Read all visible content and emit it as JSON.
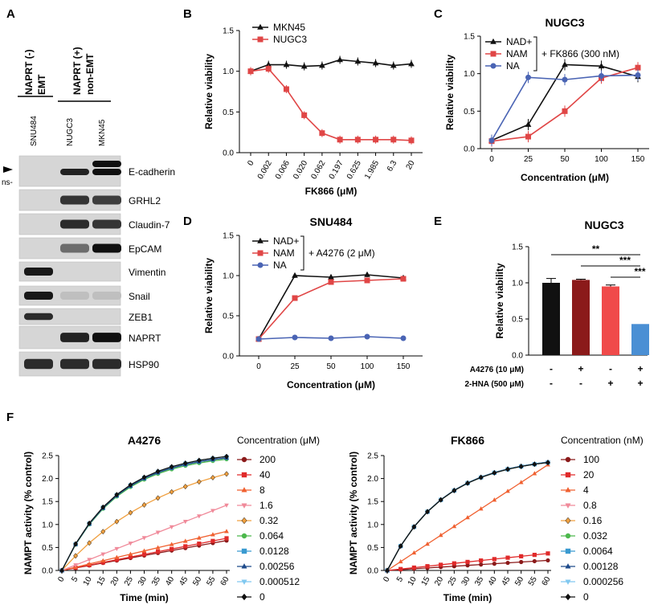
{
  "panel_letters": {
    "a": "A",
    "b": "B",
    "c": "C",
    "d": "D",
    "e": "E",
    "f": "F"
  },
  "blot": {
    "groups": [
      {
        "label": "NAPRT (-)",
        "sub": "EMT"
      },
      {
        "label": "NAPRT (+)",
        "sub": "non-EMT"
      }
    ],
    "lanes": [
      "SNU484",
      "NUGC3",
      "MKN45"
    ],
    "arrow_label": "ns-",
    "bands": [
      {
        "label": "E-cadherin",
        "intensity": [
          0.0,
          0.9,
          1.0
        ]
      },
      {
        "label": "GRHL2",
        "intensity": [
          0.0,
          0.8,
          0.75
        ]
      },
      {
        "label": "Claudin-7",
        "intensity": [
          0.0,
          0.85,
          0.8
        ]
      },
      {
        "label": "EpCAM",
        "intensity": [
          0.0,
          0.5,
          1.0
        ]
      },
      {
        "label": "Vimentin",
        "intensity": [
          0.95,
          0.0,
          0.0
        ]
      },
      {
        "label": "Snail",
        "intensity": [
          0.95,
          0.05,
          0.05
        ]
      },
      {
        "label": "ZEB1",
        "intensity": [
          0.85,
          0.0,
          0.0
        ]
      },
      {
        "label": "NAPRT",
        "intensity": [
          0.0,
          0.9,
          1.0
        ]
      },
      {
        "label": "HSP90",
        "intensity": [
          0.85,
          0.85,
          0.85
        ]
      }
    ]
  },
  "chart_data": [
    {
      "id": "B",
      "type": "line",
      "title": "",
      "xlabel": "FK866 (μM)",
      "ylabel": "Relative viability",
      "categories": [
        "0",
        "0.002",
        "0.006",
        "0.020",
        "0.062",
        "0.197",
        "0.625",
        "1.985",
        "6.3",
        "20"
      ],
      "ylim": [
        0,
        1.5
      ],
      "yticks": [
        "0.0",
        "0.5",
        "1.0",
        "1.5"
      ],
      "series": [
        {
          "name": "MKN45",
          "color": "#111111",
          "marker": "triangle",
          "values": [
            1.0,
            1.08,
            1.08,
            1.06,
            1.07,
            1.14,
            1.12,
            1.1,
            1.07,
            1.09
          ]
        },
        {
          "name": "NUGC3",
          "color": "#e04646",
          "marker": "square",
          "values": [
            1.0,
            1.03,
            0.78,
            0.46,
            0.24,
            0.16,
            0.16,
            0.16,
            0.16,
            0.15
          ]
        }
      ]
    },
    {
      "id": "C",
      "type": "line",
      "title": "NUGC3",
      "xlabel": "Concentration (μM)",
      "ylabel": "Relative viability",
      "categories": [
        "0",
        "25",
        "50",
        "100",
        "150"
      ],
      "ylim": [
        0,
        1.5
      ],
      "yticks": [
        "0.0",
        "0.5",
        "1.0",
        "1.5"
      ],
      "bracket_label": "+ FK866 (300 nM)",
      "series": [
        {
          "name": "NAD+",
          "color": "#111111",
          "marker": "triangle",
          "values": [
            0.11,
            0.32,
            1.12,
            1.1,
            0.96
          ]
        },
        {
          "name": "NAM",
          "color": "#e04646",
          "marker": "square",
          "values": [
            0.1,
            0.16,
            0.5,
            0.94,
            1.08
          ]
        },
        {
          "name": "NA",
          "color": "#4a64b4",
          "marker": "circle",
          "values": [
            0.11,
            0.95,
            0.92,
            0.97,
            0.98
          ]
        }
      ]
    },
    {
      "id": "D",
      "type": "line",
      "title": "SNU484",
      "xlabel": "Concentration (μM)",
      "ylabel": "Relative viability",
      "categories": [
        "0",
        "25",
        "50",
        "100",
        "150"
      ],
      "ylim": [
        0,
        1.5
      ],
      "yticks": [
        "0.0",
        "0.5",
        "1.0",
        "1.5"
      ],
      "bracket_label": "+ A4276 (2 μM)",
      "series": [
        {
          "name": "NAD+",
          "color": "#111111",
          "marker": "triangle",
          "values": [
            0.21,
            1.0,
            0.98,
            1.01,
            0.97
          ]
        },
        {
          "name": "NAM",
          "color": "#e04646",
          "marker": "square",
          "values": [
            0.21,
            0.72,
            0.92,
            0.94,
            0.96
          ]
        },
        {
          "name": "NA",
          "color": "#4a64b4",
          "marker": "circle",
          "values": [
            0.21,
            0.23,
            0.22,
            0.24,
            0.22
          ]
        }
      ]
    },
    {
      "id": "E",
      "type": "bar",
      "title": "NUGC3",
      "ylabel": "Relative viability",
      "ylim": [
        0,
        1.5
      ],
      "yticks": [
        "0.0",
        "0.5",
        "1.0",
        "1.5"
      ],
      "values": [
        1.0,
        1.04,
        0.95,
        0.43
      ],
      "errors": [
        0.06,
        0.01,
        0.02,
        0.0
      ],
      "colors": [
        "#111111",
        "#8b1a1a",
        "#f04a4a",
        "#4a8fd4"
      ],
      "rows": [
        {
          "label": "A4276 (10 μM)",
          "marks": [
            "-",
            "+",
            "-",
            "+"
          ]
        },
        {
          "label": "2-HNA (500 μM)",
          "marks": [
            "-",
            "-",
            "+",
            "+"
          ]
        }
      ],
      "significance": [
        "**",
        "***",
        "***"
      ]
    },
    {
      "id": "F-A4276",
      "type": "line",
      "title": "A4276",
      "xlabel": "Time (min)",
      "ylabel": "NAMPT activity (% control)",
      "x": [
        0,
        5,
        10,
        15,
        20,
        25,
        30,
        35,
        40,
        45,
        50,
        55,
        60
      ],
      "ylim": [
        0,
        2.5
      ],
      "yticks": [
        "0.0",
        "0.5",
        "1.0",
        "1.5",
        "2.0",
        "2.5"
      ],
      "xticks": [
        "0",
        "5",
        "10",
        "15",
        "20",
        "25",
        "30",
        "35",
        "40",
        "45",
        "50",
        "55",
        "60"
      ],
      "legend_title": "Concentration (μM)",
      "series": [
        {
          "name": "200",
          "color": "#8b1a1a",
          "marker": "circle",
          "final": 0.65
        },
        {
          "name": "40",
          "color": "#e02a2a",
          "marker": "square",
          "final": 0.7
        },
        {
          "name": "8",
          "color": "#f06030",
          "marker": "triangle",
          "final": 0.85
        },
        {
          "name": "1.6",
          "color": "#f08a9a",
          "marker": "invtriangle",
          "final": 1.42
        },
        {
          "name": "0.32",
          "color": "#f0a040",
          "marker": "diamond",
          "final": 2.1
        },
        {
          "name": "0.064",
          "color": "#4cb84c",
          "marker": "circle",
          "final": 2.42
        },
        {
          "name": "0.0128",
          "color": "#3a9ad0",
          "marker": "square",
          "final": 2.45
        },
        {
          "name": "0.00256",
          "color": "#1e4a8a",
          "marker": "triangle",
          "final": 2.45
        },
        {
          "name": "0.000512",
          "color": "#80c8f0",
          "marker": "invtriangle",
          "final": 2.48
        },
        {
          "name": "0",
          "color": "#111111",
          "marker": "diamond",
          "final": 2.48
        }
      ]
    },
    {
      "id": "F-FK866",
      "type": "line",
      "title": "FK866",
      "xlabel": "Time (min)",
      "ylabel": "NAMPT activity (% control)",
      "x": [
        0,
        5,
        10,
        15,
        20,
        25,
        30,
        35,
        40,
        45,
        50,
        55,
        60
      ],
      "ylim": [
        0,
        2.5
      ],
      "yticks": [
        "0.0",
        "0.5",
        "1.0",
        "1.5",
        "2.0",
        "2.5"
      ],
      "xticks": [
        "0",
        "5",
        "10",
        "15",
        "20",
        "25",
        "30",
        "35",
        "40",
        "45",
        "50",
        "55",
        "60"
      ],
      "legend_title": "Concentration (nM)",
      "series": [
        {
          "name": "100",
          "color": "#8b1a1a",
          "marker": "circle",
          "final": 0.22
        },
        {
          "name": "20",
          "color": "#e02a2a",
          "marker": "square",
          "final": 0.37
        },
        {
          "name": "4",
          "color": "#f06030",
          "marker": "triangle",
          "final": 2.3
        },
        {
          "name": "0.8",
          "color": "#f08a9a",
          "marker": "invtriangle",
          "final": 2.35
        },
        {
          "name": "0.16",
          "color": "#f0a040",
          "marker": "diamond",
          "final": 2.35
        },
        {
          "name": "0.032",
          "color": "#4cb84c",
          "marker": "circle",
          "final": 2.35
        },
        {
          "name": "0.0064",
          "color": "#3a9ad0",
          "marker": "square",
          "final": 2.35
        },
        {
          "name": "0.00128",
          "color": "#1e4a8a",
          "marker": "triangle",
          "final": 2.36
        },
        {
          "name": "0.000256",
          "color": "#80c8f0",
          "marker": "invtriangle",
          "final": 2.36
        },
        {
          "name": "0",
          "color": "#111111",
          "marker": "diamond",
          "final": 2.35
        }
      ]
    }
  ]
}
